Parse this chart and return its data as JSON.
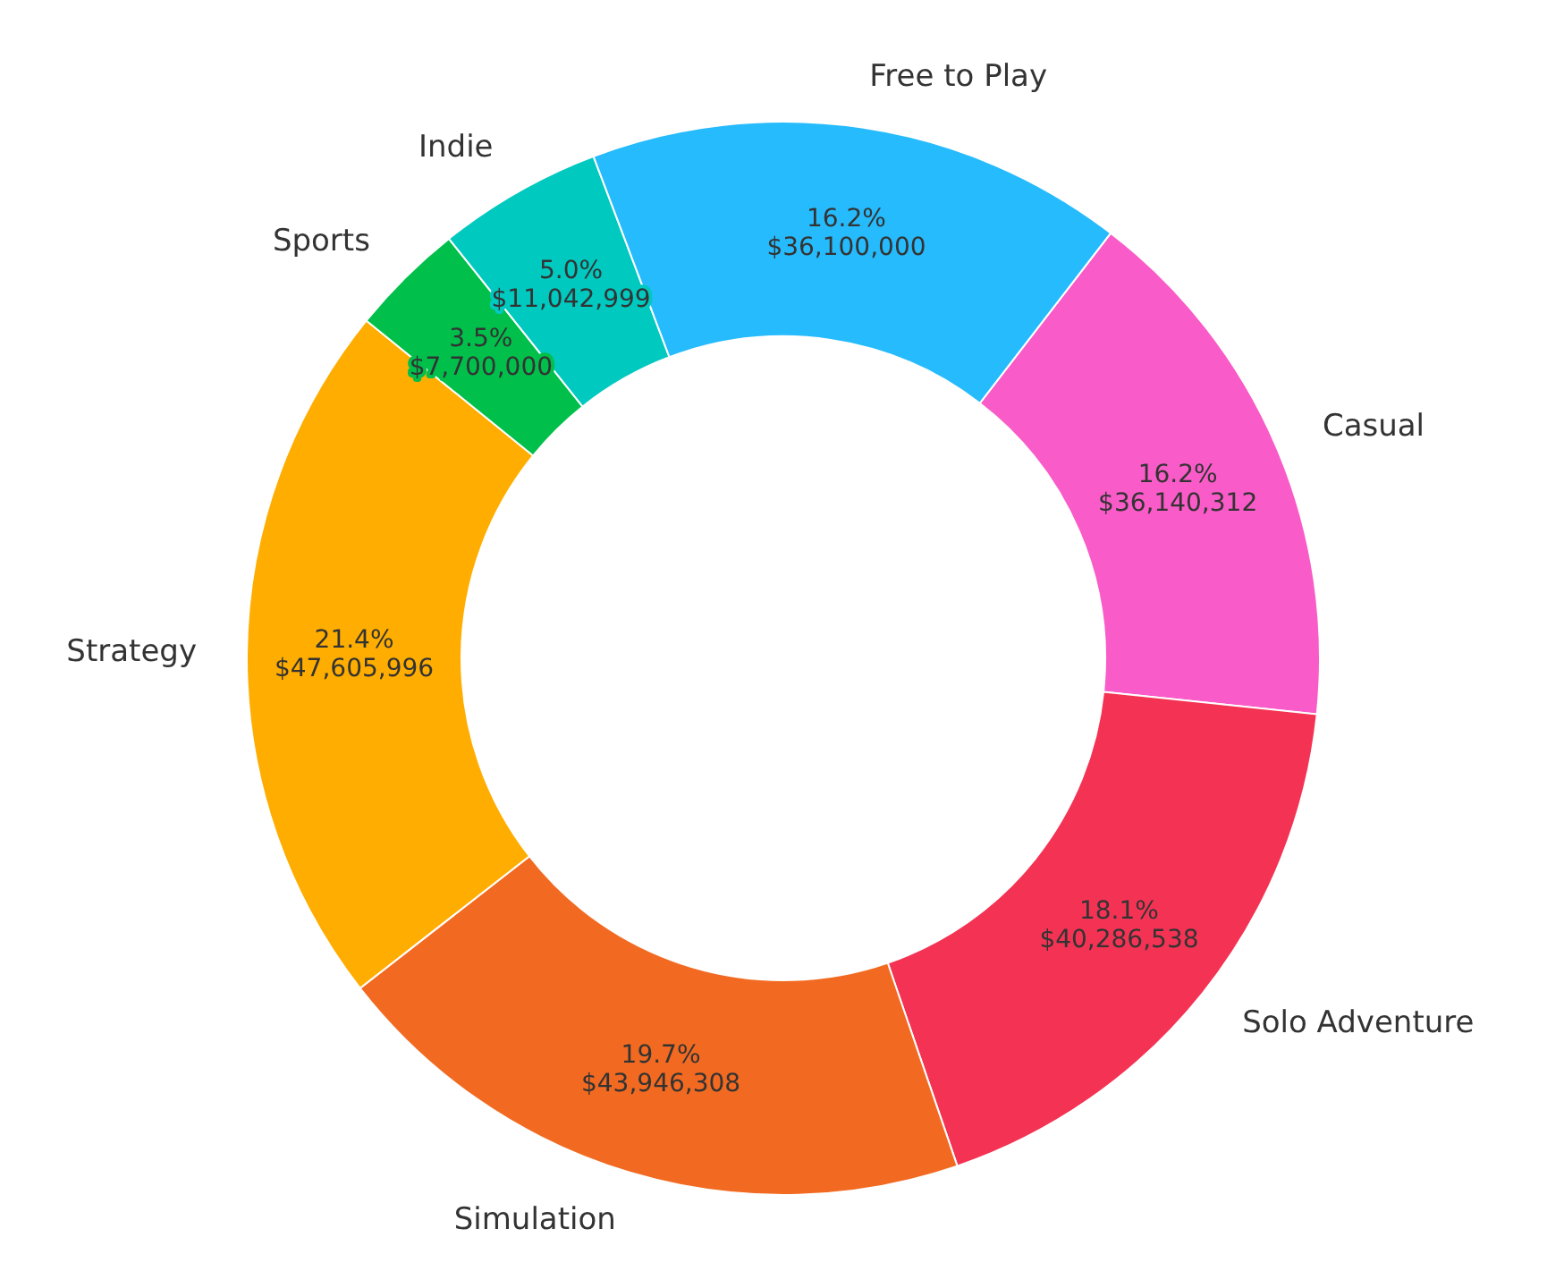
{
  "chart_data": {
    "type": "donut",
    "categories": [
      "Casual",
      "Solo Adventure",
      "Simulation",
      "Strategy",
      "Sports",
      "Indie",
      "Free to Play"
    ],
    "values": [
      36140312,
      40286538,
      43946308,
      47605996,
      7700000,
      11042999,
      36100000
    ],
    "colors": [
      "#f95bc8",
      "#f43354",
      "#f26a21",
      "#ffad00",
      "#00c04b",
      "#00c9c0",
      "#26bbfc"
    ],
    "value_labels": [
      "16.2%\n$36,140,312",
      "18.1%\n$40,286,538",
      "19.7%\n$43,946,308",
      "21.4%\n$47,605,996",
      "3.5%\n$7,700,000",
      "5.0%\n$11,042,999",
      "16.2%\n$36,100,000"
    ]
  }
}
